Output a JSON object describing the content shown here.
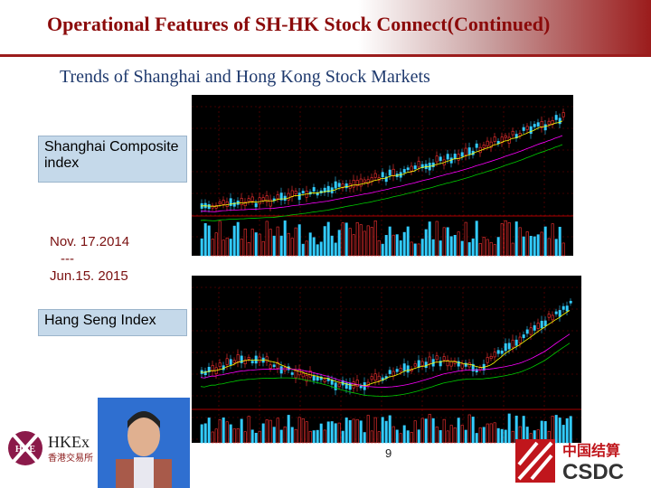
{
  "header": {
    "title": "Operational Features of SH-HK Stock Connect(Continued)"
  },
  "subtitle": "Trends of Shanghai and Hong Kong Stock Markets",
  "charts": [
    {
      "label": "Shanghai Composite index"
    },
    {
      "label": "Hang Seng Index"
    }
  ],
  "period": {
    "start": "Nov. 17.2014",
    "separator": "---",
    "end": "Jun.15. 2015"
  },
  "logos": {
    "hkex_mark": "HKE",
    "hkex": "HKEx",
    "hkex_chinese": "香港交易所",
    "csdc_chinese": "中国结算",
    "csdc": "CSDC"
  },
  "page_number": "9"
}
